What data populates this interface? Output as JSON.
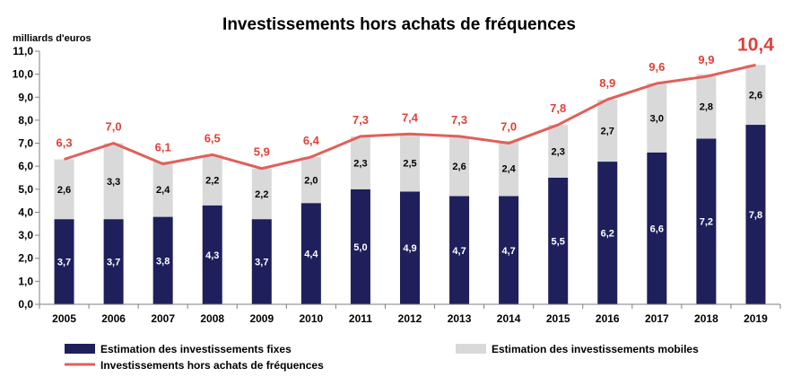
{
  "chart_data": {
    "type": "bar",
    "stacked": true,
    "title": "Investissements  hors achats de fréquences",
    "ylabel": "milliards d'euros",
    "ylim": [
      0,
      11
    ],
    "yticks": [
      "0,0",
      "1,0",
      "2,0",
      "3,0",
      "4,0",
      "5,0",
      "6,0",
      "7,0",
      "8,0",
      "9,0",
      "10,0",
      "11,0"
    ],
    "categories": [
      "2005",
      "2006",
      "2007",
      "2008",
      "2009",
      "2010",
      "2011",
      "2012",
      "2013",
      "2014",
      "2015",
      "2016",
      "2017",
      "2018",
      "2019"
    ],
    "series": [
      {
        "name": "Estimation des investissements fixes",
        "values": [
          3.7,
          3.7,
          3.8,
          4.3,
          3.7,
          4.4,
          5.0,
          4.9,
          4.7,
          4.7,
          5.5,
          6.2,
          6.6,
          7.2,
          7.8
        ],
        "labels": [
          "3,7",
          "3,7",
          "3,8",
          "4,3",
          "3,7",
          "4,4",
          "5,0",
          "4,9",
          "4,7",
          "4,7",
          "5,5",
          "6,2",
          "6,6",
          "7,2",
          "7,8"
        ],
        "color": "#1f1f5c"
      },
      {
        "name": "Estimation des investissements  mobiles",
        "values": [
          2.6,
          3.3,
          2.4,
          2.2,
          2.2,
          2.0,
          2.3,
          2.5,
          2.6,
          2.4,
          2.3,
          2.7,
          3.0,
          2.8,
          2.6
        ],
        "labels": [
          "2,6",
          "3,3",
          "2,4",
          "2,2",
          "2,2",
          "2,0",
          "2,3",
          "2,5",
          "2,6",
          "2,4",
          "2,3",
          "2,7",
          "3,0",
          "2,8",
          "2,6"
        ],
        "color": "#d9d9d9"
      },
      {
        "name": "Investissements hors achats de fréquences",
        "type": "line",
        "values": [
          6.3,
          7.0,
          6.1,
          6.5,
          5.9,
          6.4,
          7.3,
          7.4,
          7.3,
          7.0,
          7.8,
          8.9,
          9.6,
          9.9,
          10.4
        ],
        "labels": [
          "6,3",
          "7,0",
          "6,1",
          "6,5",
          "5,9",
          "6,4",
          "7,3",
          "7,4",
          "7,3",
          "7,0",
          "7,8",
          "8,9",
          "9,6",
          "9,9",
          "10,4"
        ],
        "color": "#e0605a",
        "label_color": "#e0403a"
      }
    ],
    "grid": false,
    "legend": "bottom"
  }
}
